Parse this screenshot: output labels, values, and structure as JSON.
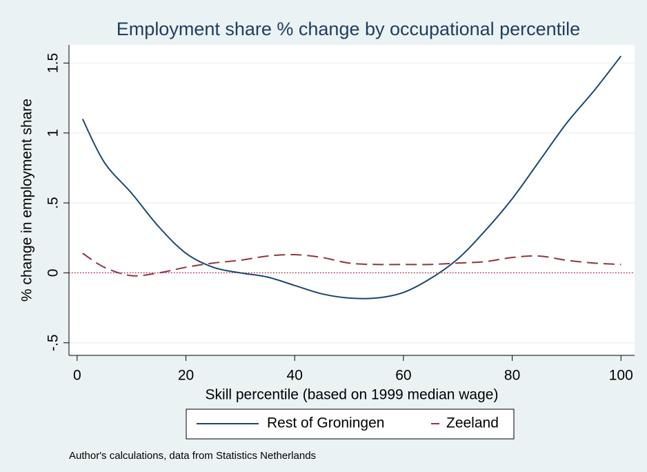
{
  "chart_data": {
    "type": "line",
    "title": "Employment share % change by occupational percentile",
    "x_label": "Skill percentile (based on 1999 median wage)",
    "y_label": "% change in employment share",
    "note": "Author's calculations, data from Statistics Netherlands",
    "x": [
      1,
      5,
      10,
      15,
      20,
      25,
      30,
      35,
      40,
      45,
      50,
      55,
      60,
      65,
      70,
      75,
      80,
      85,
      90,
      95,
      100
    ],
    "series": [
      {
        "name": "Rest of Groningen",
        "color": "#1a476f",
        "dash": "solid",
        "values": [
          1.1,
          0.79,
          0.57,
          0.33,
          0.14,
          0.04,
          0.0,
          -0.03,
          -0.09,
          -0.15,
          -0.18,
          -0.18,
          -0.14,
          -0.04,
          0.1,
          0.3,
          0.53,
          0.8,
          1.07,
          1.3,
          1.55
        ]
      },
      {
        "name": "Zeeland",
        "color": "#90353b",
        "dash": "dashed",
        "values": [
          0.14,
          0.04,
          -0.02,
          0.0,
          0.04,
          0.07,
          0.09,
          0.12,
          0.13,
          0.11,
          0.07,
          0.06,
          0.06,
          0.06,
          0.07,
          0.08,
          0.11,
          0.12,
          0.09,
          0.07,
          0.06
        ]
      }
    ],
    "reference_line": {
      "value": 0,
      "color": "#c10534"
    },
    "xlim": [
      -1.5,
      102.5
    ],
    "xticks": [
      0,
      20,
      40,
      60,
      80,
      100
    ],
    "ylim": [
      -0.59,
      1.63
    ],
    "yticks": [
      {
        "value": -0.5,
        "label": "-.5"
      },
      0,
      {
        "value": 0.5,
        "label": ".5"
      },
      1,
      1.5
    ],
    "grid": true,
    "legend": "bottom"
  }
}
